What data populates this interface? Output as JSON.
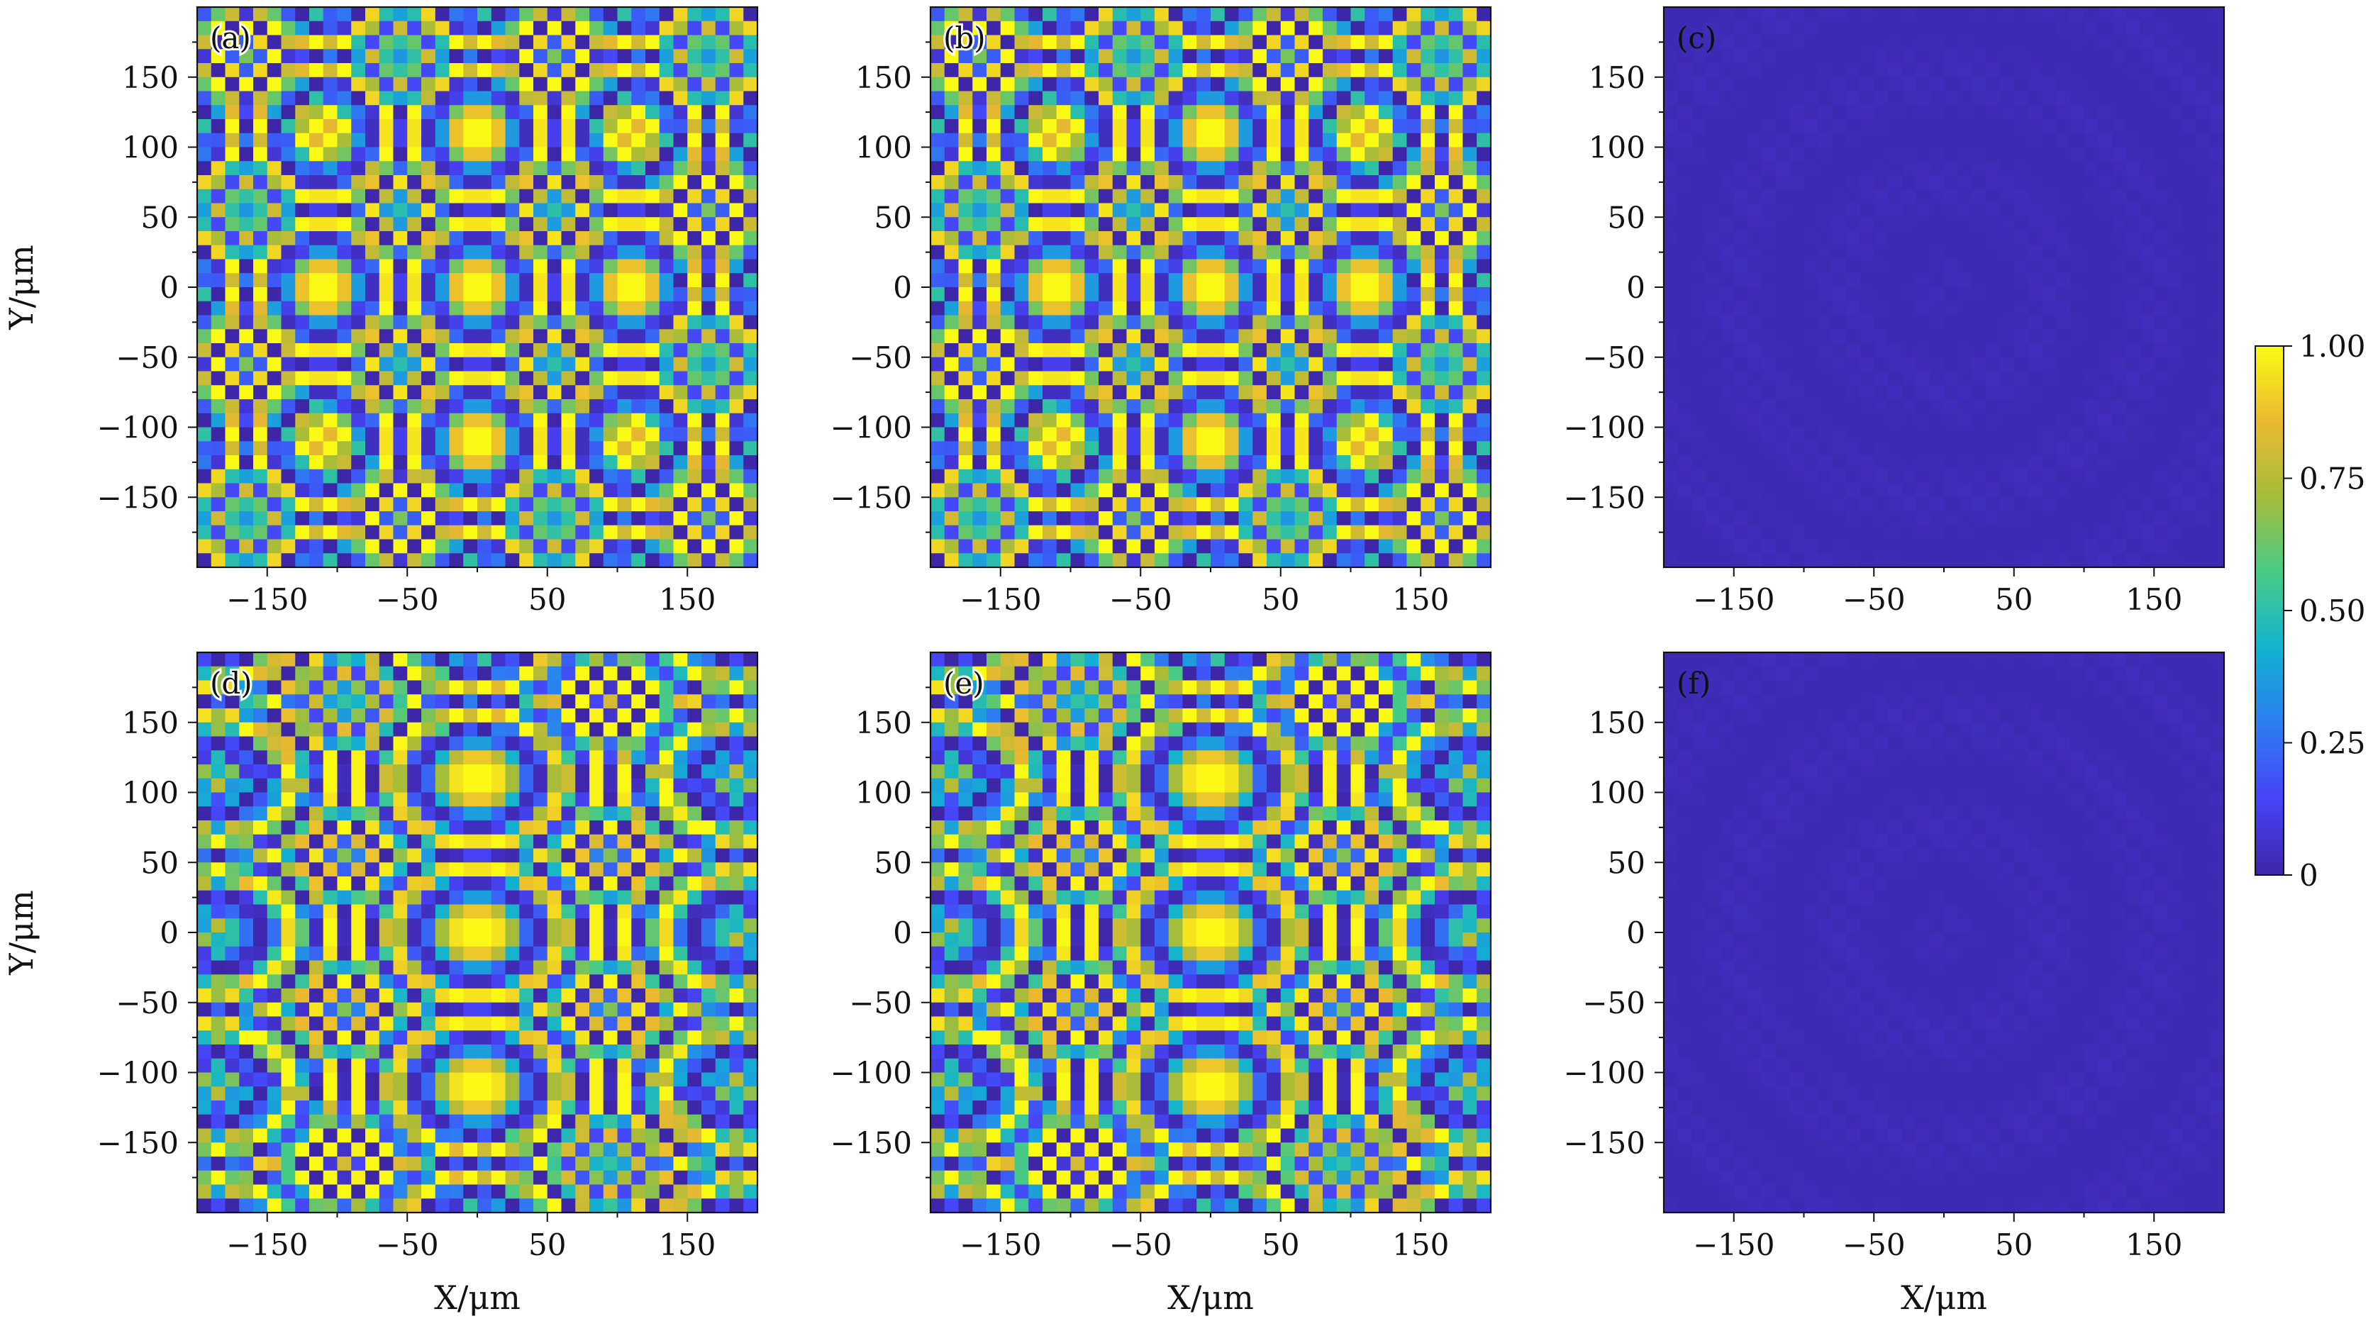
{
  "figure": {
    "colorbar": {
      "ticks": [
        0,
        0.25,
        0.5,
        0.75,
        1.0
      ],
      "tick_labels": [
        "0",
        "0.25",
        "0.50",
        "0.75",
        "1.00"
      ],
      "colormap": [
        "#3e26a8",
        "#4743f8",
        "#2c7ef1",
        "#12b2d0",
        "#47cb86",
        "#a3bd3a",
        "#eab930",
        "#fbfa14"
      ]
    }
  },
  "chart_data": [
    {
      "type": "heatmap",
      "panel": "(a)",
      "xlabel": "",
      "ylabel": "Y/μm",
      "xlim": [
        -200,
        200
      ],
      "ylim": [
        -200,
        200
      ],
      "xticks": [
        -150,
        -50,
        50,
        150
      ],
      "xtick_labels": [
        "−150",
        "−50",
        "50",
        "150"
      ],
      "yticks": [
        150,
        100,
        50,
        0,
        -50,
        -100,
        -150
      ],
      "ytick_labels": [
        "150",
        "100",
        "50",
        "0",
        "−50",
        "−100",
        "−150"
      ],
      "grid": false,
      "colorbar": "shared",
      "vmin": 0,
      "vmax": 1,
      "pattern": "phase-rings",
      "center_value": 1.0,
      "ring_period_um2": 2200,
      "grid_cells": 40,
      "x_stretch": 1.0
    },
    {
      "type": "heatmap",
      "panel": "(b)",
      "xlabel": "",
      "ylabel": "",
      "xlim": [
        -200,
        200
      ],
      "ylim": [
        -200,
        200
      ],
      "xticks": [
        -150,
        -50,
        50,
        150
      ],
      "xtick_labels": [
        "−150",
        "−50",
        "50",
        "150"
      ],
      "yticks": [
        150,
        100,
        50,
        0,
        -50,
        -100,
        -150
      ],
      "ytick_labels": [
        "150",
        "100",
        "50",
        "0",
        "−50",
        "−100",
        "−150"
      ],
      "grid": false,
      "colorbar": "shared",
      "vmin": 0,
      "vmax": 1,
      "pattern": "phase-rings",
      "center_value": 1.0,
      "ring_period_um2": 2200,
      "grid_cells": 40,
      "x_stretch": 1.0
    },
    {
      "type": "heatmap",
      "panel": "(c)",
      "xlabel": "",
      "ylabel": "",
      "xlim": [
        -200,
        200
      ],
      "ylim": [
        -200,
        200
      ],
      "xticks": [
        -150,
        -50,
        50,
        150
      ],
      "xtick_labels": [
        "−150",
        "−50",
        "50",
        "150"
      ],
      "yticks": [
        150,
        100,
        50,
        0,
        -50,
        -100,
        -150
      ],
      "ytick_labels": [
        "150",
        "100",
        "50",
        "0",
        "−50",
        "−100",
        "−150"
      ],
      "grid": false,
      "colorbar": "shared",
      "vmin": 0,
      "vmax": 1,
      "pattern": "near-zero",
      "center_value": 0.02,
      "max_value": 0.04,
      "grid_cells": 40,
      "x_stretch": 1.0
    },
    {
      "type": "heatmap",
      "panel": "(d)",
      "xlabel": "X/μm",
      "ylabel": "Y/μm",
      "xlim": [
        -200,
        200
      ],
      "ylim": [
        -200,
        200
      ],
      "xticks": [
        -150,
        -50,
        50,
        150
      ],
      "xtick_labels": [
        "−150",
        "−50",
        "50",
        "150"
      ],
      "yticks": [
        150,
        100,
        50,
        0,
        -50,
        -100,
        -150
      ],
      "ytick_labels": [
        "150",
        "100",
        "50",
        "0",
        "−50",
        "−100",
        "−150"
      ],
      "grid": false,
      "colorbar": "shared",
      "vmin": 0,
      "vmax": 1,
      "pattern": "phase-rings",
      "center_value": 1.0,
      "ring_period_um2": 2200,
      "grid_cells": 40,
      "x_stretch": 1.3
    },
    {
      "type": "heatmap",
      "panel": "(e)",
      "xlabel": "X/μm",
      "ylabel": "",
      "xlim": [
        -200,
        200
      ],
      "ylim": [
        -200,
        200
      ],
      "xticks": [
        -150,
        -50,
        50,
        150
      ],
      "xtick_labels": [
        "−150",
        "−50",
        "50",
        "150"
      ],
      "yticks": [
        150,
        100,
        50,
        0,
        -50,
        -100,
        -150
      ],
      "ytick_labels": [
        "150",
        "100",
        "50",
        "0",
        "−50",
        "−100",
        "−150"
      ],
      "grid": false,
      "colorbar": "shared",
      "vmin": 0,
      "vmax": 1,
      "pattern": "phase-rings",
      "center_value": 1.0,
      "ring_period_um2": 2200,
      "grid_cells": 40,
      "x_stretch": 1.3
    },
    {
      "type": "heatmap",
      "panel": "(f)",
      "xlabel": "X/μm",
      "ylabel": "",
      "xlim": [
        -200,
        200
      ],
      "ylim": [
        -200,
        200
      ],
      "xticks": [
        -150,
        -50,
        50,
        150
      ],
      "xtick_labels": [
        "−150",
        "−50",
        "50",
        "150"
      ],
      "yticks": [
        150,
        100,
        50,
        0,
        -50,
        -100,
        -150
      ],
      "ytick_labels": [
        "150",
        "100",
        "50",
        "0",
        "−50",
        "−100",
        "−150"
      ],
      "grid": false,
      "colorbar": "shared",
      "vmin": 0,
      "vmax": 1,
      "pattern": "near-zero",
      "center_value": 0.02,
      "max_value": 0.04,
      "grid_cells": 40,
      "x_stretch": 1.3
    }
  ]
}
